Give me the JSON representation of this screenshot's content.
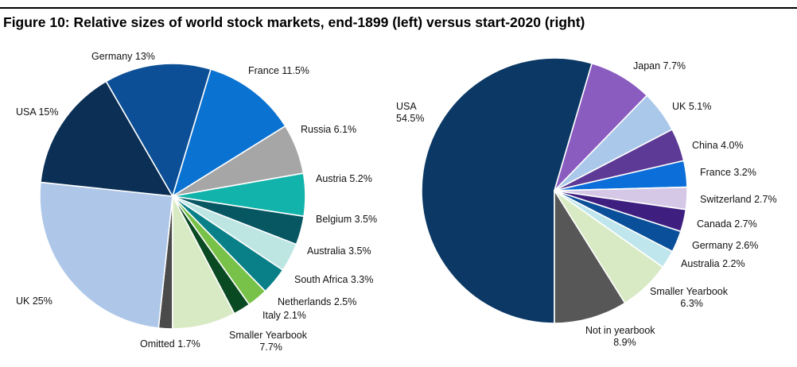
{
  "title": "Figure 10: Relative sizes of world stock markets, end-1899 (left) versus start-2020 (right)",
  "chart_data": [
    {
      "type": "pie",
      "slices": [
        {
          "label": "Omitted 1.7%",
          "name": "Omitted",
          "value": 1.7,
          "color": "#4a4a4a"
        },
        {
          "label": "UK 25%",
          "name": "UK",
          "value": 25,
          "color": "#aec7e8"
        },
        {
          "label": "USA 15%",
          "name": "USA",
          "value": 15,
          "color": "#0b2f55"
        },
        {
          "label": "Germany 13%",
          "name": "Germany",
          "value": 13,
          "color": "#0d4f96"
        },
        {
          "label": "France 11.5%",
          "name": "France",
          "value": 11.5,
          "color": "#0a72d1"
        },
        {
          "label": "Russia 6.1%",
          "name": "Russia",
          "value": 6.1,
          "color": "#a6a6a6"
        },
        {
          "label": "Austria 5.2%",
          "name": "Austria",
          "value": 5.2,
          "color": "#12b3aa"
        },
        {
          "label": "Belgium 3.5%",
          "name": "Belgium",
          "value": 3.5,
          "color": "#075763"
        },
        {
          "label": "Australia 3.5%",
          "name": "Australia",
          "value": 3.5,
          "color": "#bde6e3"
        },
        {
          "label": "South Africa 3.3%",
          "name": "South Africa",
          "value": 3.3,
          "color": "#098088"
        },
        {
          "label": "Netherlands 2.5%",
          "name": "Netherlands",
          "value": 2.5,
          "color": "#79c24a"
        },
        {
          "label": "Italy 2.1%",
          "name": "Italy",
          "value": 2.1,
          "color": "#0a4a22"
        },
        {
          "label": "Smaller Yearbook 7.7%",
          "label_lines": [
            "Smaller Yearbook",
            "7.7%"
          ],
          "name": "Smaller Yearbook",
          "value": 7.7,
          "color": "#d8eac3"
        }
      ]
    },
    {
      "type": "pie",
      "slices": [
        {
          "label": "USA 54.5%",
          "label_lines": [
            "USA",
            "54.5%"
          ],
          "name": "USA",
          "value": 54.5,
          "color": "#0b3864"
        },
        {
          "label": "Japan 7.7%",
          "name": "Japan",
          "value": 7.7,
          "color": "#8b5cc0"
        },
        {
          "label": "UK 5.1%",
          "name": "UK",
          "value": 5.1,
          "color": "#aac8ea"
        },
        {
          "label": "China 4.0%",
          "name": "China",
          "value": 4.0,
          "color": "#5c3a95"
        },
        {
          "label": "France 3.2%",
          "name": "France",
          "value": 3.2,
          "color": "#0c6ed8"
        },
        {
          "label": "Switzerland 2.7%",
          "name": "Switzerland",
          "value": 2.7,
          "color": "#d5c8e6"
        },
        {
          "label": "Canada 2.7%",
          "name": "Canada",
          "value": 2.7,
          "color": "#3e1f80"
        },
        {
          "label": "Germany 2.6%",
          "name": "Germany",
          "value": 2.6,
          "color": "#0a4f9a"
        },
        {
          "label": "Australia 2.2%",
          "name": "Australia",
          "value": 2.2,
          "color": "#bfe6ec"
        },
        {
          "label": "Smaller Yearbook 6.3%",
          "label_lines": [
            "Smaller Yearbook",
            "6.3%"
          ],
          "name": "Smaller Yearbook",
          "value": 6.3,
          "color": "#d8eac3"
        },
        {
          "label": "Not in yearbook 8.9%",
          "label_lines": [
            "Not in yearbook",
            "8.9%"
          ],
          "name": "Not in yearbook",
          "value": 8.9,
          "color": "#575757"
        }
      ]
    }
  ]
}
